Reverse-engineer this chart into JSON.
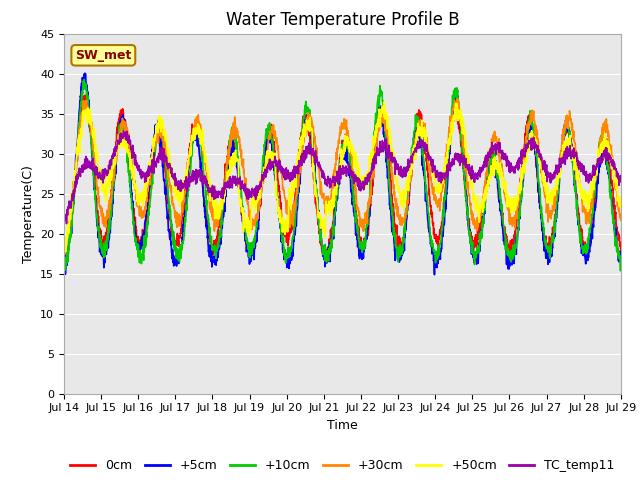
{
  "title": "Water Temperature Profile B",
  "xlabel": "Time",
  "ylabel": "Temperature(C)",
  "ylim": [
    0,
    45
  ],
  "yticks": [
    0,
    5,
    10,
    15,
    20,
    25,
    30,
    35,
    40,
    45
  ],
  "series": [
    {
      "label": "0cm",
      "color": "#ff0000"
    },
    {
      "label": "+5cm",
      "color": "#0000ff"
    },
    {
      "label": "+10cm",
      "color": "#00cc00"
    },
    {
      "label": "+30cm",
      "color": "#ff8800"
    },
    {
      "label": "+50cm",
      "color": "#ffff00"
    },
    {
      "label": "TC_temp11",
      "color": "#9900aa"
    }
  ],
  "annotation_text": "SW_met",
  "annotation_color": "#880000",
  "annotation_bg": "#ffff99",
  "annotation_border": "#aa7700",
  "plot_bg": "#e8e8e8",
  "grid_color": "#ffffff",
  "title_fontsize": 12,
  "axis_fontsize": 9,
  "legend_fontsize": 9,
  "tick_fontsize": 8,
  "line_width": 1.2,
  "start_day": 14,
  "end_day": 29,
  "num_points": 2000
}
